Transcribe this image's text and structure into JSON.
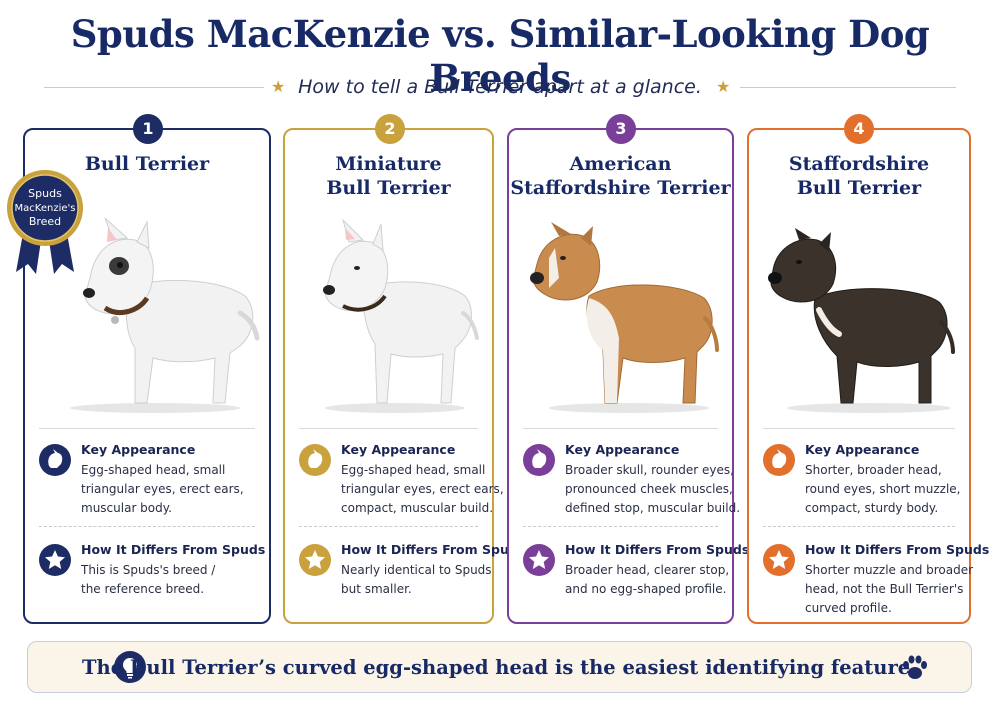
{
  "title": "Spuds MacKenzie vs. Similar-Looking Dog Breeds",
  "subtitle": "How to tell a Bull Terrier apart at a glance.",
  "badge": {
    "line1": "Spuds",
    "line2": "MacKenzie's",
    "line3": "Breed"
  },
  "labels": {
    "appearance": "Key Appearance",
    "differs": "How It Differs From Spuds"
  },
  "colors": {
    "navy": "#1d2c64",
    "gold": "#c9a13d",
    "purple": "#7a3f98",
    "orange": "#e2702c"
  },
  "cards": [
    {
      "number": "1",
      "title_lines": [
        "Bull Terrier",
        ""
      ],
      "appearance": [
        "Egg-shaped head, small",
        "triangular eyes, erect ears,",
        "muscular body."
      ],
      "differs": [
        "This is Spuds's breed /",
        "the reference breed.",
        ""
      ]
    },
    {
      "number": "2",
      "title_lines": [
        "Miniature",
        "Bull Terrier"
      ],
      "appearance": [
        "Egg-shaped head, small",
        "triangular eyes, erect ears,",
        "compact, muscular build."
      ],
      "differs": [
        "Nearly identical to Spuds",
        "but smaller.",
        ""
      ]
    },
    {
      "number": "3",
      "title_lines": [
        "American",
        "Staffordshire Terrier"
      ],
      "appearance": [
        "Broader skull, rounder eyes,",
        "pronounced cheek muscles,",
        "defined stop, muscular build."
      ],
      "differs": [
        "Broader head, clearer stop,",
        "and no egg-shaped profile.",
        ""
      ]
    },
    {
      "number": "4",
      "title_lines": [
        "Staffordshire",
        "Bull Terrier"
      ],
      "appearance": [
        "Shorter, broader head,",
        "round eyes, short muzzle,",
        "compact, sturdy body."
      ],
      "differs": [
        "Shorter muzzle and broader",
        "head, not the Bull Terrier's",
        "curved profile."
      ]
    }
  ],
  "banner": "The Bull Terrier’s curved egg-shaped head is the easiest identifying feature."
}
